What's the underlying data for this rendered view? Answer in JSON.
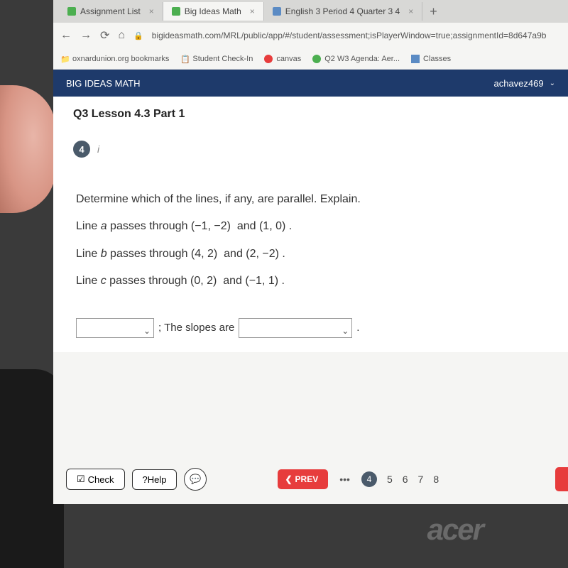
{
  "tabs": [
    {
      "label": "Assignment List",
      "icon_color": "#4caf50"
    },
    {
      "label": "Big Ideas Math",
      "icon_color": "#4caf50"
    },
    {
      "label": "English 3 Period 4 Quarter 3 4",
      "icon_color": "#5b8bc4"
    }
  ],
  "url": "bigideasmath.com/MRL/public/app/#/student/assessment;isPlayerWindow=true;assignmentId=8d647a9b",
  "bookmarks": [
    {
      "label": "oxnardunion.org bookmarks",
      "icon": "📁"
    },
    {
      "label": "Student Check-In",
      "icon": "📋"
    },
    {
      "label": "canvas",
      "icon": "🔴"
    },
    {
      "label": "Q2 W3 Agenda: Aer...",
      "icon": "🟢"
    },
    {
      "label": "Classes",
      "icon": "👥"
    }
  ],
  "app_title": "BIG IDEAS MATH",
  "username": "achavez469",
  "lesson_title": "Q3 Lesson 4.3 Part 1",
  "question_number": "4",
  "info_label": "i",
  "question_text": "Determine which of the lines, if any, are parallel. Explain.",
  "line_a": "Line a passes through (−1, −2)  and (1, 0) .",
  "line_b": "Line b passes through (4, 2)  and (2, −2) .",
  "line_c": "Line c passes through (0, 2)  and (−1, 1) .",
  "answer_mid": "; The slopes are",
  "check_label": "Check",
  "help_label": "?Help",
  "prev_label": "PREV",
  "pages": [
    "4",
    "5",
    "6",
    "7",
    "8"
  ],
  "active_page": "4",
  "laptop_brand": "acer",
  "colors": {
    "header_bg": "#1e3a6b",
    "badge_bg": "#4a5a6a",
    "prev_bg": "#e73c3c"
  }
}
